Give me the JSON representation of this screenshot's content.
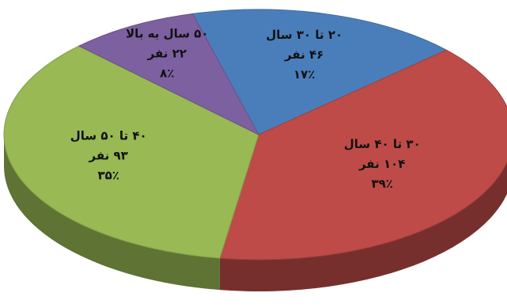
{
  "chart_data": {
    "type": "pie",
    "style": "3d",
    "title": "",
    "slices": [
      {
        "name": "۲۰ تا ۳۰ سال",
        "count_label": "۴۶ نفر",
        "percent_label": "۱۷٪",
        "count": 46,
        "percent": 17,
        "color": "#4a7ebb"
      },
      {
        "name": "۳۰ تا ۴۰ سال",
        "count_label": "۱۰۴ نفر",
        "percent_label": "۳۹٪",
        "count": 104,
        "percent": 39,
        "color": "#be4b48"
      },
      {
        "name": "۴۰ تا ۵۰ سال",
        "count_label": "۹۳ نفر",
        "percent_label": "۳۵٪",
        "count": 93,
        "percent": 35,
        "color": "#98b954"
      },
      {
        "name": "۵۰ سال به بالا",
        "count_label": "۲۲ نفر",
        "percent_label": "۸٪",
        "count": 22,
        "percent": 8,
        "color": "#7d60a0"
      }
    ]
  }
}
